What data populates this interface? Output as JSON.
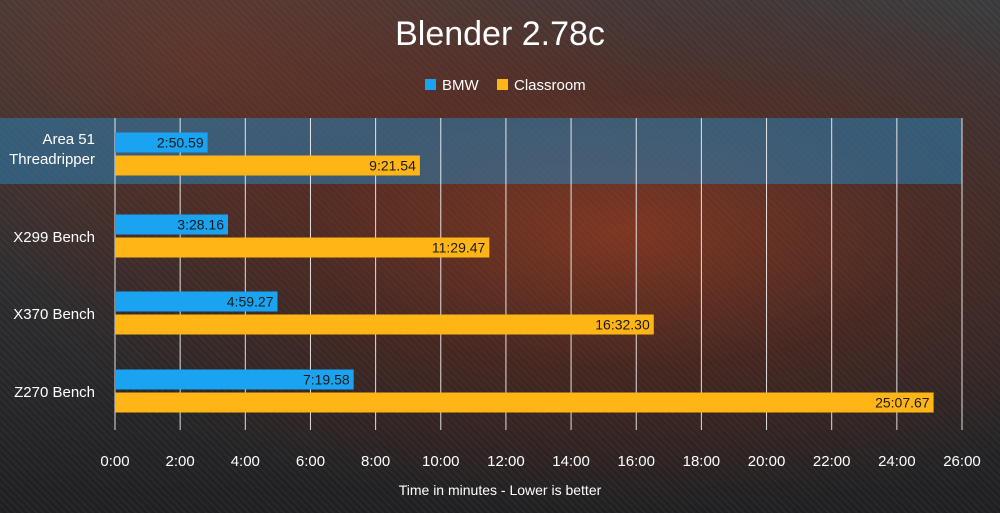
{
  "chart_data": {
    "type": "bar",
    "orientation": "horizontal",
    "title": "Blender 2.78c",
    "xlabel": "Time in minutes - Lower is better",
    "ylabel": "",
    "categories": [
      "Area 51 Threadripper",
      "X299 Bench",
      "X370 Bench",
      "Z270 Bench"
    ],
    "highlighted_category": "Area 51 Threadripper",
    "series": [
      {
        "name": "BMW",
        "color": "#1aa3f0",
        "values": [
          2.843,
          3.469,
          4.988,
          7.326
        ],
        "labels": [
          "2:50.59",
          "3:28.16",
          "4:59.27",
          "7:19.58"
        ]
      },
      {
        "name": "Classroom",
        "color": "#ffb516",
        "values": [
          9.359,
          11.491,
          16.538,
          25.128
        ],
        "labels": [
          "9:21.54",
          "11:29.47",
          "16:32.30",
          "25:07.67"
        ]
      }
    ],
    "xlim": [
      0,
      26
    ],
    "xticks": [
      "0:00",
      "2:00",
      "4:00",
      "6:00",
      "8:00",
      "10:00",
      "12:00",
      "14:00",
      "16:00",
      "18:00",
      "20:00",
      "22:00",
      "24:00",
      "26:00"
    ],
    "grid": true,
    "legend_position": "top-center"
  }
}
